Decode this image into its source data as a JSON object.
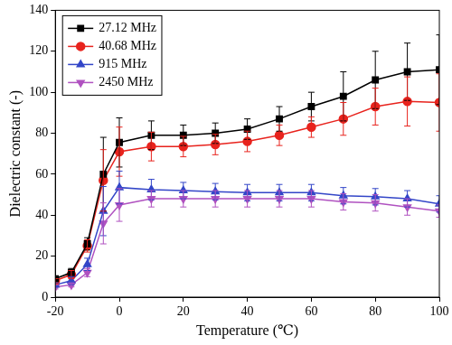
{
  "chart_data": {
    "type": "line",
    "x_label": "Temperature (℃)",
    "y_label": "Dielectric constant (-)",
    "x": [
      -20,
      -15,
      -10,
      -5,
      0,
      10,
      20,
      30,
      40,
      50,
      60,
      70,
      80,
      90,
      100
    ],
    "xlim": [
      -20,
      100
    ],
    "xticks": [
      -20,
      0,
      20,
      40,
      60,
      80,
      100
    ],
    "ylim": [
      0,
      140
    ],
    "yticks": [
      0,
      20,
      40,
      60,
      80,
      100,
      120,
      140
    ],
    "grid": false,
    "legend": "top-left",
    "series": [
      {
        "name": "27.12 MHz",
        "color": "#000000",
        "marker": "square",
        "line_style": "solid",
        "values": [
          9,
          12,
          26,
          60,
          75.5,
          79,
          79,
          80,
          82,
          87,
          93,
          98,
          106,
          110,
          111
        ],
        "errors": [
          1,
          2,
          3,
          18,
          12,
          7,
          5,
          5,
          5,
          6,
          7,
          12,
          14,
          14,
          17
        ]
      },
      {
        "name": "40.68 MHz",
        "color": "#e8231d",
        "marker": "circle",
        "line_style": "solid",
        "values": [
          8,
          11,
          25,
          57,
          71,
          73.5,
          73.5,
          74.5,
          76,
          79,
          83,
          87,
          93,
          95.5,
          95
        ],
        "errors": [
          1,
          2,
          3,
          15,
          12,
          7,
          5,
          5,
          5,
          5,
          5,
          8,
          9,
          12,
          14
        ]
      },
      {
        "name": "915 MHz",
        "color": "#3346c8",
        "marker": "triangle-up",
        "line_style": "solid",
        "values": [
          6,
          8,
          16,
          42,
          53.5,
          52.5,
          52,
          51.5,
          51,
          51,
          51,
          49.5,
          49,
          48,
          45.5
        ],
        "errors": [
          1,
          2,
          3,
          12,
          8,
          5,
          4,
          4,
          4,
          4,
          4,
          4,
          4,
          4,
          4
        ]
      },
      {
        "name": "2450 MHz",
        "color": "#b052c0",
        "marker": "triangle-down",
        "line_style": "solid",
        "values": [
          5,
          6,
          12,
          36,
          45,
          48,
          48,
          48,
          48,
          48,
          48,
          46.5,
          46,
          44,
          42
        ],
        "errors": [
          1,
          1,
          2,
          10,
          8,
          4,
          4,
          4,
          4,
          4,
          4,
          4,
          4,
          4,
          3
        ]
      }
    ]
  }
}
